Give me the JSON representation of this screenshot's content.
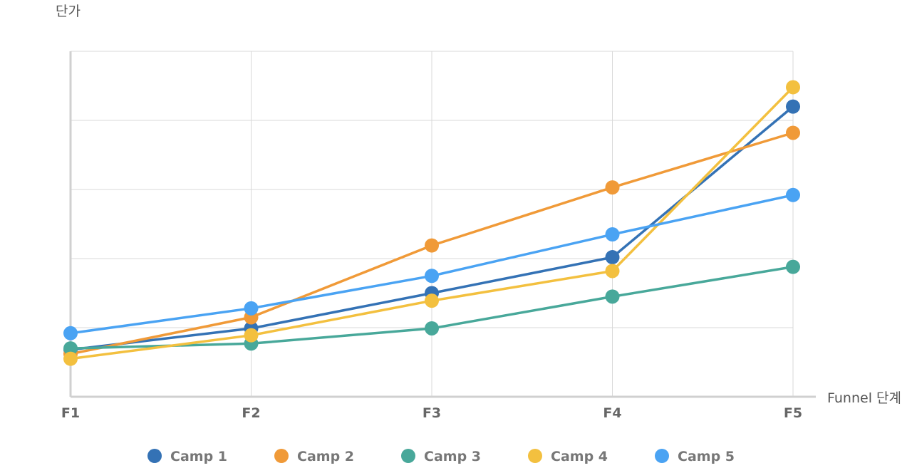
{
  "chart_data": {
    "type": "line",
    "title": "",
    "xlabel": "Funnel 단계",
    "ylabel": "단가",
    "categories": [
      "F1",
      "F2",
      "F3",
      "F4",
      "F5"
    ],
    "ylim": [
      0,
      5
    ],
    "yticks": [
      0,
      1,
      2,
      3,
      4,
      5
    ],
    "show_y_tick_labels": false,
    "grid": true,
    "legend_position": "bottom",
    "series": [
      {
        "name": "Camp 1",
        "color": "#3472b5",
        "values": [
          0.68,
          0.99,
          1.5,
          2.02,
          4.2
        ]
      },
      {
        "name": "Camp 2",
        "color": "#f09a38",
        "values": [
          0.62,
          1.15,
          2.19,
          3.03,
          3.82
        ]
      },
      {
        "name": "Camp 3",
        "color": "#48a89a",
        "values": [
          0.7,
          0.77,
          0.99,
          1.45,
          1.88
        ]
      },
      {
        "name": "Camp 4",
        "color": "#f3c03f",
        "values": [
          0.55,
          0.89,
          1.39,
          1.82,
          4.48
        ]
      },
      {
        "name": "Camp 5",
        "color": "#4aa3f3",
        "values": [
          0.92,
          1.28,
          1.75,
          2.35,
          2.92
        ]
      }
    ]
  }
}
